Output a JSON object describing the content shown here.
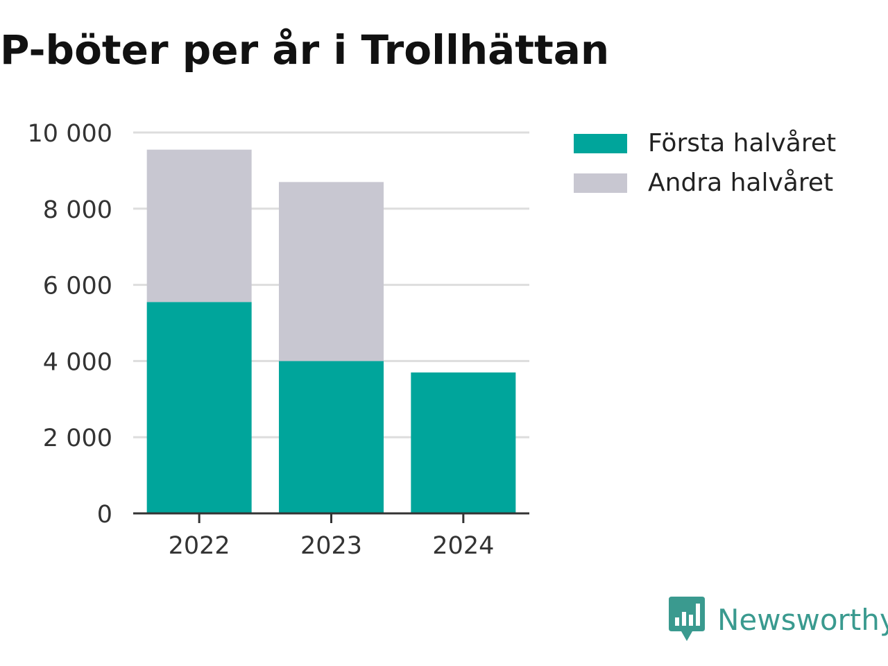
{
  "title": "P-böter per år i Trollhättan",
  "brand": {
    "name": "Newsworthy",
    "color": "#3a9a8f",
    "icon": "newsworthy-logo-icon"
  },
  "colors": {
    "first_half": "#00a59b",
    "second_half": "#c8c7d1",
    "grid": "#dddddd",
    "axis": "#333333"
  },
  "chart_data": {
    "type": "bar",
    "stacked": true,
    "categories": [
      "2022",
      "2023",
      "2024"
    ],
    "series": [
      {
        "name": "Första halvåret",
        "values": [
          5550,
          4000,
          3700
        ]
      },
      {
        "name": "Andra halvåret",
        "values": [
          4000,
          4700,
          null
        ]
      }
    ],
    "title": "P-böter per år i Trollhättan",
    "xlabel": "",
    "ylabel": "",
    "ylim": [
      0,
      10000
    ],
    "yticks": [
      0,
      2000,
      4000,
      6000,
      8000,
      10000
    ],
    "ytick_labels": [
      "0",
      "2 000",
      "4 000",
      "6 000",
      "8 000",
      "10 000"
    ],
    "grid": true,
    "legend_position": "top-right"
  }
}
